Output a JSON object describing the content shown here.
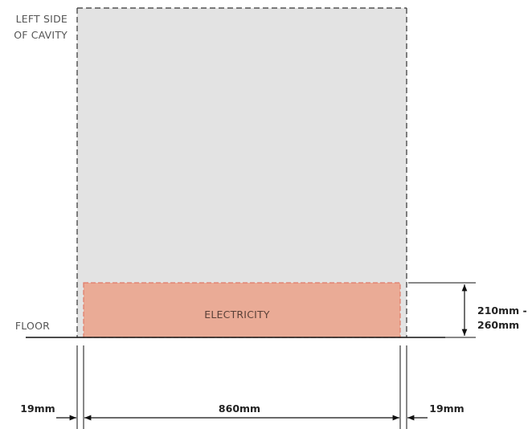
{
  "labels": {
    "left_side_line1": "LEFT SIDE",
    "left_side_line2": "OF CAVITY",
    "floor": "FLOOR",
    "electricity_zone": "ELECTRICITY"
  },
  "dimensions": {
    "zone_height_line1": "210mm -",
    "zone_height_line2": "260mm",
    "left_gap": "19mm",
    "width": "860mm",
    "right_gap": "19mm"
  },
  "colors": {
    "cavity_fill": "#e3e3e3",
    "electricity_fill": "#eaab96",
    "electricity_outline": "#e07a68",
    "outline": "#333333"
  }
}
